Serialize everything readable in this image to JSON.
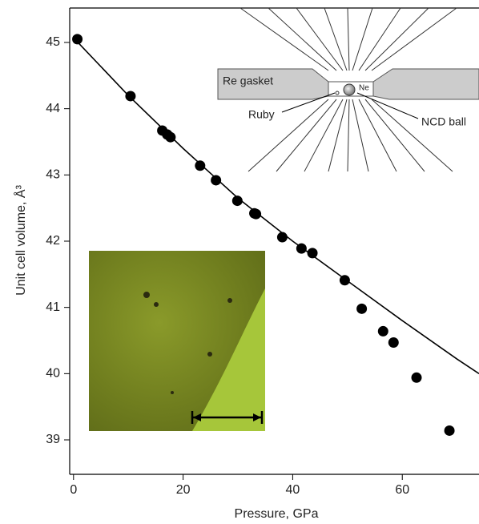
{
  "chart_data": {
    "type": "scatter",
    "x_label": "Pressure, GPa",
    "y_label": "Unit cell volume, Å³",
    "xlim": [
      -0.7,
      74
    ],
    "ylim": [
      38.48,
      45.52
    ],
    "xticks": [
      0,
      20,
      40,
      60
    ],
    "yticks": [
      39,
      40,
      41,
      42,
      43,
      44,
      45
    ],
    "series": [
      {
        "type": "scatter",
        "color": "#000000",
        "x": [
          0.7,
          10.4,
          16.2,
          17.1,
          17.7,
          23.1,
          26.0,
          29.9,
          33.0,
          33.3,
          38.1,
          41.6,
          43.6,
          49.5,
          52.6,
          56.5,
          58.4,
          62.6,
          68.6
        ],
        "values": [
          45.05,
          44.19,
          43.67,
          43.61,
          43.57,
          43.14,
          42.92,
          42.61,
          42.42,
          42.41,
          42.06,
          41.89,
          41.82,
          41.41,
          40.98,
          40.64,
          40.47,
          39.94,
          39.14
        ]
      },
      {
        "type": "line",
        "color": "#000000",
        "x": [
          0,
          10,
          20,
          30,
          40,
          50,
          60,
          70,
          74
        ],
        "values": [
          45.07,
          44.2,
          43.4,
          42.65,
          42.0,
          41.4,
          40.8,
          40.22,
          40.0
        ]
      }
    ],
    "annotations": [
      "Re gasket",
      "Ruby",
      "NCD ball",
      "Ne"
    ]
  }
}
